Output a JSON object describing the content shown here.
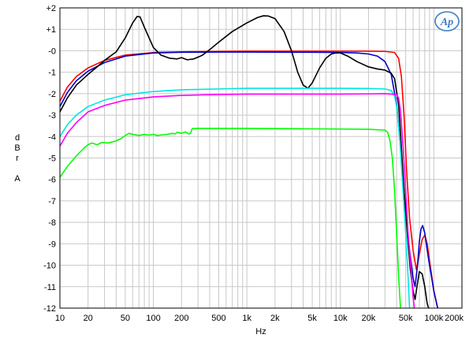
{
  "chart_data": {
    "type": "line",
    "xscale": "log",
    "xlim": [
      10,
      200000
    ],
    "ylim": [
      -12,
      2
    ],
    "xlabel": "Hz",
    "ylabel": [
      "d",
      "B",
      "r",
      "",
      "A"
    ],
    "grid": true,
    "logo": "Ap",
    "xticks": [
      {
        "v": 10,
        "label": "10"
      },
      {
        "v": 20,
        "label": "20"
      },
      {
        "v": 50,
        "label": "50"
      },
      {
        "v": 100,
        "label": "100"
      },
      {
        "v": 200,
        "label": "200"
      },
      {
        "v": 500,
        "label": "500"
      },
      {
        "v": 1000,
        "label": "1k"
      },
      {
        "v": 2000,
        "label": "2k"
      },
      {
        "v": 5000,
        "label": "5k"
      },
      {
        "v": 10000,
        "label": "10k"
      },
      {
        "v": 20000,
        "label": "20k"
      },
      {
        "v": 50000,
        "label": "50k"
      },
      {
        "v": 100000,
        "label": "100k"
      },
      {
        "v": 200000,
        "label": "200k"
      }
    ],
    "yticks": [
      {
        "v": 2,
        "label": "+2"
      },
      {
        "v": 1,
        "label": "+1"
      },
      {
        "v": 0,
        "label": "-0"
      },
      {
        "v": -1,
        "label": "-1"
      },
      {
        "v": -2,
        "label": "-2"
      },
      {
        "v": -3,
        "label": "-3"
      },
      {
        "v": -4,
        "label": "-4"
      },
      {
        "v": -5,
        "label": "-5"
      },
      {
        "v": -6,
        "label": "-6"
      },
      {
        "v": -7,
        "label": "-7"
      },
      {
        "v": -8,
        "label": "-8"
      },
      {
        "v": -9,
        "label": "-9"
      },
      {
        "v": -10,
        "label": "-10"
      },
      {
        "v": -11,
        "label": "-11"
      },
      {
        "v": -12,
        "label": "-12"
      }
    ],
    "series": [
      {
        "color": "#ff0000",
        "points": [
          [
            10,
            -2.35
          ],
          [
            12,
            -1.7
          ],
          [
            15,
            -1.2
          ],
          [
            20,
            -0.8
          ],
          [
            30,
            -0.45
          ],
          [
            50,
            -0.2
          ],
          [
            100,
            -0.08
          ],
          [
            200,
            -0.05
          ],
          [
            500,
            -0.03
          ],
          [
            1000,
            -0.02
          ],
          [
            5000,
            -0.02
          ],
          [
            10000,
            -0.02
          ],
          [
            20000,
            -0.02
          ],
          [
            30000,
            -0.03
          ],
          [
            38000,
            -0.08
          ],
          [
            42000,
            -0.35
          ],
          [
            45000,
            -1.2
          ],
          [
            48000,
            -3
          ],
          [
            51000,
            -5.5
          ],
          [
            55000,
            -7.8
          ],
          [
            60000,
            -9.3
          ],
          [
            65000,
            -10.2
          ],
          [
            70000,
            -9.5
          ],
          [
            75000,
            -8.8
          ],
          [
            80000,
            -8.6
          ],
          [
            85000,
            -9
          ],
          [
            90000,
            -9.8
          ],
          [
            95000,
            -10.5
          ],
          [
            100000,
            -11.2
          ],
          [
            110000,
            -12
          ]
        ]
      },
      {
        "color": "#0000cc",
        "points": [
          [
            10,
            -2.6
          ],
          [
            12,
            -1.95
          ],
          [
            15,
            -1.4
          ],
          [
            20,
            -0.95
          ],
          [
            30,
            -0.55
          ],
          [
            50,
            -0.25
          ],
          [
            100,
            -0.1
          ],
          [
            200,
            -0.07
          ],
          [
            500,
            -0.06
          ],
          [
            1000,
            -0.06
          ],
          [
            5000,
            -0.07
          ],
          [
            10000,
            -0.08
          ],
          [
            15000,
            -0.1
          ],
          [
            20000,
            -0.15
          ],
          [
            25000,
            -0.25
          ],
          [
            30000,
            -0.5
          ],
          [
            35000,
            -1.1
          ],
          [
            40000,
            -2.5
          ],
          [
            45000,
            -5
          ],
          [
            50000,
            -7.5
          ],
          [
            55000,
            -9.3
          ],
          [
            60000,
            -10.6
          ],
          [
            63000,
            -11
          ],
          [
            67000,
            -10
          ],
          [
            70000,
            -8.9
          ],
          [
            73000,
            -8.3
          ],
          [
            76000,
            -8.15
          ],
          [
            80000,
            -8.5
          ],
          [
            85000,
            -9.3
          ],
          [
            90000,
            -10
          ],
          [
            95000,
            -10.6
          ],
          [
            100000,
            -11.2
          ],
          [
            110000,
            -12
          ]
        ]
      },
      {
        "color": "#000000",
        "points": [
          [
            10,
            -2.85
          ],
          [
            12,
            -2.2
          ],
          [
            15,
            -1.6
          ],
          [
            20,
            -1.1
          ],
          [
            25,
            -0.75
          ],
          [
            30,
            -0.45
          ],
          [
            40,
            -0.05
          ],
          [
            50,
            0.6
          ],
          [
            60,
            1.3
          ],
          [
            67,
            1.6
          ],
          [
            72,
            1.58
          ],
          [
            80,
            1.1
          ],
          [
            100,
            0.15
          ],
          [
            120,
            -0.2
          ],
          [
            150,
            -0.35
          ],
          [
            180,
            -0.38
          ],
          [
            200,
            -0.32
          ],
          [
            230,
            -0.42
          ],
          [
            270,
            -0.38
          ],
          [
            330,
            -0.22
          ],
          [
            400,
            0.05
          ],
          [
            500,
            0.4
          ],
          [
            700,
            0.9
          ],
          [
            1000,
            1.3
          ],
          [
            1300,
            1.55
          ],
          [
            1500,
            1.63
          ],
          [
            1700,
            1.62
          ],
          [
            2000,
            1.5
          ],
          [
            2500,
            0.9
          ],
          [
            3000,
            0
          ],
          [
            3500,
            -1
          ],
          [
            4000,
            -1.6
          ],
          [
            4500,
            -1.75
          ],
          [
            5000,
            -1.5
          ],
          [
            6000,
            -0.8
          ],
          [
            7000,
            -0.35
          ],
          [
            8000,
            -0.15
          ],
          [
            9000,
            -0.1
          ],
          [
            10000,
            -0.1
          ],
          [
            12000,
            -0.25
          ],
          [
            15000,
            -0.5
          ],
          [
            20000,
            -0.75
          ],
          [
            25000,
            -0.85
          ],
          [
            30000,
            -0.9
          ],
          [
            35000,
            -1.05
          ],
          [
            38000,
            -1.3
          ],
          [
            42000,
            -2.5
          ],
          [
            45000,
            -4.5
          ],
          [
            48000,
            -6.5
          ],
          [
            52000,
            -8.5
          ],
          [
            56000,
            -10.2
          ],
          [
            60000,
            -11.2
          ],
          [
            63000,
            -11.6
          ],
          [
            66000,
            -11
          ],
          [
            70000,
            -10.3
          ],
          [
            75000,
            -10.4
          ],
          [
            80000,
            -11
          ],
          [
            85000,
            -11.8
          ],
          [
            88000,
            -12
          ]
        ]
      },
      {
        "color": "#00e5e5",
        "points": [
          [
            10,
            -4
          ],
          [
            12,
            -3.45
          ],
          [
            15,
            -3
          ],
          [
            20,
            -2.6
          ],
          [
            30,
            -2.3
          ],
          [
            50,
            -2.05
          ],
          [
            100,
            -1.9
          ],
          [
            200,
            -1.82
          ],
          [
            500,
            -1.78
          ],
          [
            1000,
            -1.75
          ],
          [
            5000,
            -1.75
          ],
          [
            10000,
            -1.75
          ],
          [
            20000,
            -1.76
          ],
          [
            30000,
            -1.78
          ],
          [
            35000,
            -1.85
          ],
          [
            38000,
            -2.1
          ],
          [
            40000,
            -2.6
          ],
          [
            43000,
            -4
          ],
          [
            46000,
            -6
          ],
          [
            50000,
            -8.5
          ],
          [
            53000,
            -10.5
          ],
          [
            55000,
            -12
          ]
        ]
      },
      {
        "color": "#ff00ff",
        "points": [
          [
            10,
            -4.45
          ],
          [
            12,
            -3.85
          ],
          [
            15,
            -3.35
          ],
          [
            20,
            -2.85
          ],
          [
            30,
            -2.55
          ],
          [
            50,
            -2.3
          ],
          [
            100,
            -2.15
          ],
          [
            200,
            -2.08
          ],
          [
            500,
            -2.04
          ],
          [
            1000,
            -2.02
          ],
          [
            5000,
            -2.02
          ],
          [
            10000,
            -2.02
          ],
          [
            20000,
            -2.01
          ],
          [
            30000,
            -2
          ],
          [
            35000,
            -2.02
          ],
          [
            40000,
            -2.05
          ],
          [
            42000,
            -2.2
          ],
          [
            44000,
            -2.8
          ],
          [
            47000,
            -4.5
          ],
          [
            50000,
            -6.5
          ],
          [
            53000,
            -8.5
          ],
          [
            57000,
            -10.2
          ],
          [
            60000,
            -11.5
          ],
          [
            62000,
            -12
          ]
        ]
      },
      {
        "color": "#00ff00",
        "points": [
          [
            10,
            -5.9
          ],
          [
            12,
            -5.4
          ],
          [
            15,
            -4.9
          ],
          [
            18,
            -4.55
          ],
          [
            20,
            -4.38
          ],
          [
            22,
            -4.3
          ],
          [
            25,
            -4.38
          ],
          [
            28,
            -4.28
          ],
          [
            33,
            -4.3
          ],
          [
            40,
            -4.2
          ],
          [
            45,
            -4.1
          ],
          [
            50,
            -3.95
          ],
          [
            55,
            -3.85
          ],
          [
            60,
            -3.9
          ],
          [
            70,
            -3.95
          ],
          [
            80,
            -3.9
          ],
          [
            90,
            -3.93
          ],
          [
            100,
            -3.9
          ],
          [
            110,
            -3.95
          ],
          [
            125,
            -3.92
          ],
          [
            140,
            -3.9
          ],
          [
            160,
            -3.85
          ],
          [
            170,
            -3.88
          ],
          [
            180,
            -3.8
          ],
          [
            200,
            -3.85
          ],
          [
            220,
            -3.78
          ],
          [
            240,
            -3.88
          ],
          [
            250,
            -3.85
          ],
          [
            260,
            -3.63
          ],
          [
            300,
            -3.62
          ],
          [
            500,
            -3.62
          ],
          [
            1000,
            -3.62
          ],
          [
            2000,
            -3.63
          ],
          [
            5000,
            -3.64
          ],
          [
            10000,
            -3.65
          ],
          [
            20000,
            -3.66
          ],
          [
            30000,
            -3.7
          ],
          [
            32000,
            -3.8
          ],
          [
            34000,
            -4.2
          ],
          [
            36000,
            -5
          ],
          [
            38000,
            -6.5
          ],
          [
            40000,
            -8.5
          ],
          [
            42000,
            -10.5
          ],
          [
            44000,
            -12
          ]
        ]
      }
    ]
  }
}
